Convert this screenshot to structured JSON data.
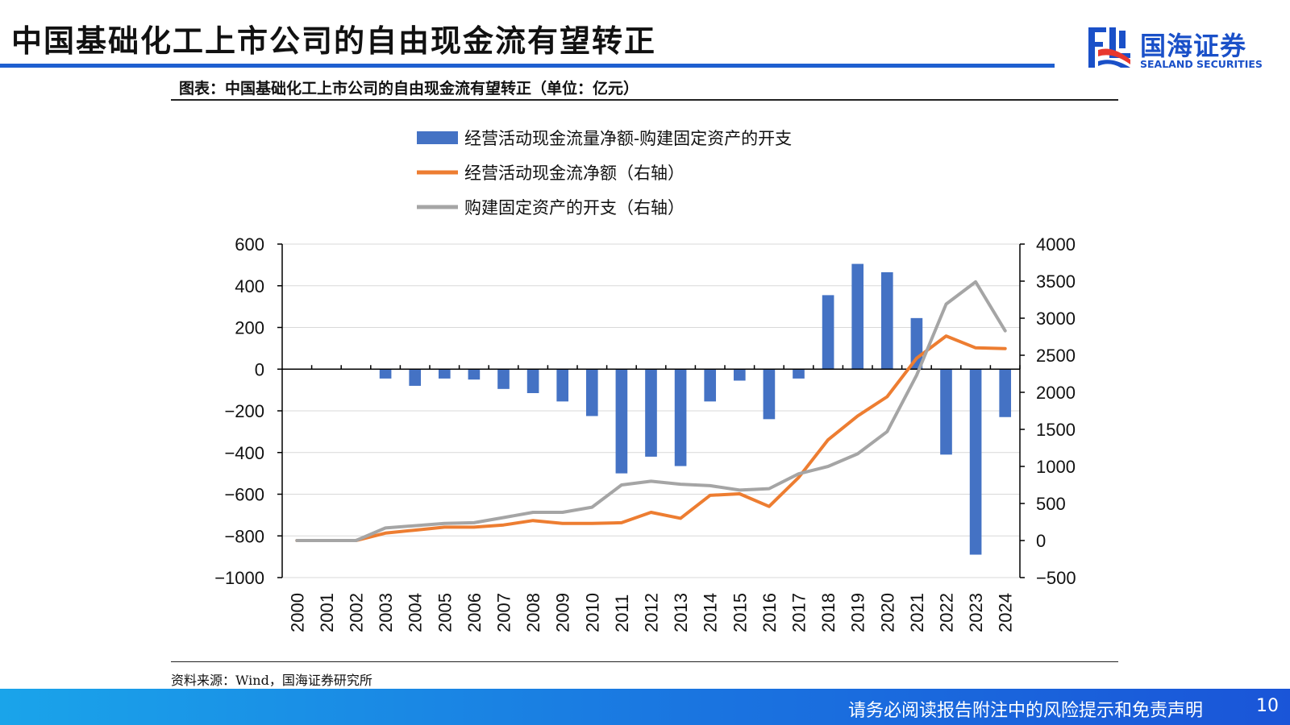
{
  "header": {
    "title": "中国基础化工上市公司的自由现金流有望转正"
  },
  "logo": {
    "cn": "国海证券",
    "en": "SEALAND SECURITIES",
    "colors": {
      "blue": "#1a50c8",
      "red": "#e8382f"
    }
  },
  "caption": "图表：中国基础化工上市公司的自由现金流有望转正（单位：亿元）",
  "source": "资料来源：Wind，国海证券研究所",
  "footer": {
    "disclaimer": "请务必阅读报告附注中的风险提示和免责声明",
    "page": "10"
  },
  "colors": {
    "accent": "#1f5fd0",
    "bar": "#4472c4",
    "operating": "#ed7d31",
    "capex": "#a5a5a5"
  },
  "chart_data": {
    "type": "bar+line",
    "categories": [
      "2000",
      "2001",
      "2002",
      "2003",
      "2004",
      "2005",
      "2006",
      "2007",
      "2008",
      "2009",
      "2010",
      "2011",
      "2012",
      "2013",
      "2014",
      "2015",
      "2016",
      "2017",
      "2018",
      "2019",
      "2020",
      "2021",
      "2022",
      "2023",
      "2024"
    ],
    "series": [
      {
        "name": "经营活动现金流量净额-购建固定资产的开支",
        "type": "bar",
        "axis": "left",
        "values": [
          0,
          0,
          0,
          -45,
          -80,
          -45,
          -50,
          -95,
          -115,
          -155,
          -225,
          -500,
          -420,
          -465,
          -155,
          -55,
          -240,
          -45,
          355,
          505,
          465,
          245,
          -410,
          -890,
          -230
        ]
      },
      {
        "name": "经营活动现金流净额（右轴）",
        "type": "line",
        "axis": "right",
        "values": [
          0,
          0,
          0,
          100,
          140,
          180,
          180,
          210,
          270,
          230,
          230,
          240,
          380,
          300,
          610,
          630,
          460,
          850,
          1360,
          1680,
          1940,
          2460,
          2760,
          2600,
          2590
        ]
      },
      {
        "name": "购建固定资产的开支（右轴）",
        "type": "line",
        "axis": "right",
        "values": [
          0,
          0,
          0,
          170,
          200,
          230,
          240,
          310,
          380,
          380,
          450,
          750,
          800,
          760,
          740,
          680,
          700,
          900,
          1000,
          1170,
          1470,
          2230,
          3190,
          3490,
          2830
        ]
      }
    ],
    "left_axis": {
      "ylim": [
        -1000,
        600
      ],
      "ticks": [
        600,
        400,
        200,
        0,
        -200,
        -400,
        -600,
        -800,
        -1000
      ]
    },
    "right_axis": {
      "ylim": [
        -500,
        4000
      ],
      "ticks": [
        4000,
        3500,
        3000,
        2500,
        2000,
        1500,
        1000,
        500,
        0,
        -500
      ]
    },
    "legend_position": "top",
    "grid": true
  }
}
